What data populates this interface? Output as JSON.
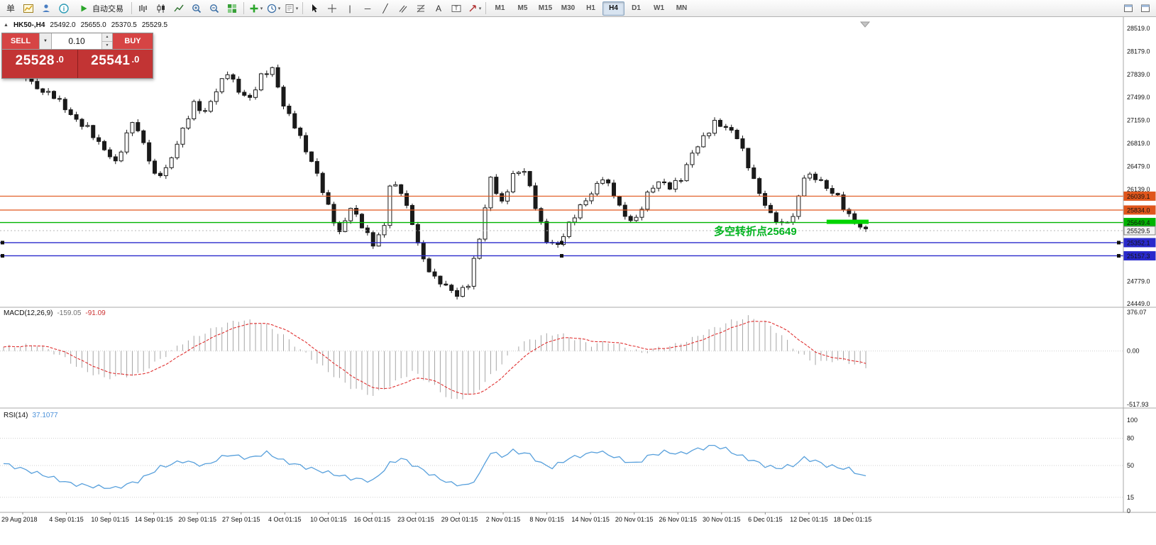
{
  "toolbar": {
    "autotrade_label": "自动交易",
    "timeframes": [
      "M1",
      "M5",
      "M15",
      "M30",
      "H1",
      "H4",
      "D1",
      "W1",
      "MN"
    ],
    "active_timeframe": "H4",
    "groups": [
      [
        {
          "name": "new-order-icon",
          "glyph": "单"
        },
        {
          "name": "new-chart-icon"
        },
        {
          "name": "profiles-icon"
        },
        {
          "name": "data-window-icon"
        }
      ],
      [
        {
          "name": "bar-chart-icon"
        },
        {
          "name": "candlestick-icon"
        },
        {
          "name": "line-chart-icon"
        },
        {
          "name": "zoom-in-icon"
        },
        {
          "name": "zoom-out-icon"
        },
        {
          "name": "tile-windows-icon"
        }
      ],
      [
        {
          "name": "indicators-icon",
          "caret": true
        },
        {
          "name": "periods-icon",
          "caret": true
        },
        {
          "name": "templates-icon",
          "caret": true
        }
      ],
      [
        {
          "name": "cursor-icon"
        },
        {
          "name": "crosshair-icon"
        },
        {
          "name": "vertical-line-icon",
          "glyph": "|"
        },
        {
          "name": "horizontal-line-icon",
          "glyph": "─"
        },
        {
          "name": "trendline-icon",
          "glyph": "╱"
        },
        {
          "name": "channel-icon"
        },
        {
          "name": "fibonacci-icon"
        },
        {
          "name": "text-icon",
          "glyph": "A"
        },
        {
          "name": "label-icon"
        },
        {
          "name": "arrows-icon",
          "caret": true
        }
      ]
    ],
    "right_icons": [
      {
        "name": "window-icon"
      },
      {
        "name": "window-icon"
      }
    ]
  },
  "chart": {
    "symbol_header": {
      "expander_glyph": "▲",
      "symbol": "HK50-,H4",
      "open": "25492.0",
      "high": "25655.0",
      "low": "25370.5",
      "close": "25529.5"
    },
    "trade_panel": {
      "sell_label": "SELL",
      "buy_label": "BUY",
      "volume": "0.10",
      "sell_price_main": "25528",
      "sell_price_frac": ".0",
      "buy_price_main": "25541",
      "buy_price_frac": ".0"
    },
    "annotation": {
      "text": "多空转折点25649",
      "color": "#00b31e"
    },
    "bid_line": {
      "price": 25529.5,
      "tag": "25529.5",
      "tag_bg": "#f2f2f2",
      "tag_border": "#808080",
      "tag_text": "#111111"
    },
    "hlines": [
      {
        "price": 26039.1,
        "tag": "26039.1",
        "color": "#e0561c",
        "width": 1.2,
        "handles": false
      },
      {
        "price": 25834.0,
        "tag": "25834.0",
        "color": "#e0561c",
        "width": 1.2,
        "handles": false
      },
      {
        "price": 25649.4,
        "tag": "25649.4",
        "color": "#00b400",
        "width": 1.4,
        "handles": false
      },
      {
        "price": 25352.1,
        "tag": "25352.1",
        "color": "#2a2acc",
        "width": 1.4,
        "handles": true
      },
      {
        "price": 25157.3,
        "tag": "25157.3",
        "color": "#2a2acc",
        "width": 1.4,
        "handles": true
      }
    ],
    "green_segment": {
      "from_bar": 147,
      "to_bar": 154.5,
      "price": 25660,
      "color": "#00d400",
      "thickness": 6
    },
    "price_axis_labels": [
      28519.0,
      28179.0,
      27839.0,
      27499.0,
      27159.0,
      26819.0,
      26479.0,
      26139.0,
      24779.0,
      24449.0
    ]
  },
  "indicators": {
    "macd": {
      "label": "MACD(12,26,9)",
      "value_main": "-159.05",
      "value_signal": "-91.09",
      "axis_labels": [
        "376.07",
        "0.00",
        "-517.93"
      ],
      "max": 376.07,
      "min": -517.93
    },
    "rsi": {
      "label": "RSI(14)",
      "value": "37.1077",
      "axis_labels": [
        "100",
        "80",
        "50",
        "15",
        "0"
      ],
      "levels": [
        80,
        50,
        15
      ],
      "max": 100,
      "min": 0
    }
  },
  "chart_data": {
    "type": "candlestick",
    "symbol": "HK50-",
    "timeframe": "H4",
    "bars": 155,
    "price_range": [
      24449.0,
      28519.0
    ],
    "price_keypoints": [
      [
        0,
        27870
      ],
      [
        3,
        27900
      ],
      [
        6,
        27650
      ],
      [
        9,
        27500
      ],
      [
        12,
        27250
      ],
      [
        15,
        27050
      ],
      [
        17,
        26800
      ],
      [
        20,
        26550
      ],
      [
        23,
        27150
      ],
      [
        25,
        26800
      ],
      [
        27,
        26350
      ],
      [
        29,
        26450
      ],
      [
        31,
        26800
      ],
      [
        34,
        27400
      ],
      [
        36,
        27300
      ],
      [
        38,
        27600
      ],
      [
        40,
        27850
      ],
      [
        42,
        27600
      ],
      [
        44,
        27500
      ],
      [
        46,
        27800
      ],
      [
        48,
        27900
      ],
      [
        50,
        27400
      ],
      [
        52,
        27100
      ],
      [
        54,
        26700
      ],
      [
        56,
        26350
      ],
      [
        58,
        25900
      ],
      [
        60,
        25500
      ],
      [
        62,
        25850
      ],
      [
        64,
        25600
      ],
      [
        66,
        25350
      ],
      [
        68,
        25600
      ],
      [
        69,
        26200
      ],
      [
        71,
        26100
      ],
      [
        73,
        25650
      ],
      [
        75,
        25100
      ],
      [
        77,
        24800
      ],
      [
        79,
        24700
      ],
      [
        81,
        24600
      ],
      [
        83,
        24750
      ],
      [
        85,
        25400
      ],
      [
        87,
        26300
      ],
      [
        89,
        25950
      ],
      [
        91,
        26350
      ],
      [
        93,
        26400
      ],
      [
        95,
        25900
      ],
      [
        97,
        25400
      ],
      [
        99,
        25300
      ],
      [
        101,
        25600
      ],
      [
        103,
        25900
      ],
      [
        105,
        26100
      ],
      [
        107,
        26300
      ],
      [
        109,
        26050
      ],
      [
        111,
        25750
      ],
      [
        113,
        25700
      ],
      [
        115,
        26050
      ],
      [
        117,
        26250
      ],
      [
        119,
        26200
      ],
      [
        121,
        26300
      ],
      [
        123,
        26650
      ],
      [
        125,
        26900
      ],
      [
        127,
        27150
      ],
      [
        129,
        27050
      ],
      [
        131,
        26900
      ],
      [
        133,
        26500
      ],
      [
        135,
        26100
      ],
      [
        137,
        25750
      ],
      [
        139,
        25600
      ],
      [
        141,
        25750
      ],
      [
        143,
        26350
      ],
      [
        145,
        26300
      ],
      [
        147,
        26150
      ],
      [
        149,
        26050
      ],
      [
        151,
        25750
      ],
      [
        153,
        25550
      ],
      [
        154,
        25530
      ]
    ],
    "macd_keypoints": [
      [
        0,
        40
      ],
      [
        6,
        60
      ],
      [
        10,
        -40
      ],
      [
        14,
        -180
      ],
      [
        18,
        -260
      ],
      [
        24,
        -230
      ],
      [
        28,
        -80
      ],
      [
        32,
        80
      ],
      [
        38,
        230
      ],
      [
        42,
        300
      ],
      [
        46,
        280
      ],
      [
        50,
        150
      ],
      [
        54,
        -30
      ],
      [
        58,
        -200
      ],
      [
        62,
        -350
      ],
      [
        66,
        -430
      ],
      [
        70,
        -300
      ],
      [
        73,
        -200
      ],
      [
        76,
        -300
      ],
      [
        80,
        -480
      ],
      [
        84,
        -420
      ],
      [
        88,
        -180
      ],
      [
        92,
        60
      ],
      [
        96,
        150
      ],
      [
        99,
        170
      ],
      [
        102,
        120
      ],
      [
        105,
        60
      ],
      [
        108,
        90
      ],
      [
        111,
        40
      ],
      [
        114,
        -20
      ],
      [
        117,
        30
      ],
      [
        120,
        60
      ],
      [
        123,
        120
      ],
      [
        126,
        200
      ],
      [
        130,
        290
      ],
      [
        133,
        330
      ],
      [
        136,
        280
      ],
      [
        139,
        150
      ],
      [
        142,
        -20
      ],
      [
        145,
        -120
      ],
      [
        148,
        -90
      ],
      [
        151,
        -110
      ],
      [
        154,
        -159
      ]
    ],
    "rsi_keypoints": [
      [
        0,
        52
      ],
      [
        4,
        45
      ],
      [
        8,
        38
      ],
      [
        12,
        30
      ],
      [
        16,
        27
      ],
      [
        20,
        25
      ],
      [
        24,
        33
      ],
      [
        28,
        48
      ],
      [
        32,
        55
      ],
      [
        36,
        50
      ],
      [
        40,
        62
      ],
      [
        44,
        58
      ],
      [
        47,
        64
      ],
      [
        50,
        55
      ],
      [
        54,
        48
      ],
      [
        58,
        42
      ],
      [
        62,
        36
      ],
      [
        66,
        33
      ],
      [
        69,
        52
      ],
      [
        71,
        58
      ],
      [
        74,
        48
      ],
      [
        77,
        38
      ],
      [
        80,
        30
      ],
      [
        83,
        28
      ],
      [
        85,
        40
      ],
      [
        87,
        65
      ],
      [
        89,
        60
      ],
      [
        91,
        66
      ],
      [
        94,
        62
      ],
      [
        96,
        52
      ],
      [
        98,
        48
      ],
      [
        101,
        58
      ],
      [
        104,
        62
      ],
      [
        106,
        66
      ],
      [
        109,
        60
      ],
      [
        111,
        55
      ],
      [
        113,
        52
      ],
      [
        115,
        60
      ],
      [
        118,
        65
      ],
      [
        121,
        63
      ],
      [
        124,
        68
      ],
      [
        127,
        72
      ],
      [
        129,
        68
      ],
      [
        131,
        62
      ],
      [
        134,
        55
      ],
      [
        136,
        50
      ],
      [
        138,
        47
      ],
      [
        141,
        50
      ],
      [
        143,
        58
      ],
      [
        145,
        55
      ],
      [
        147,
        50
      ],
      [
        149,
        48
      ],
      [
        151,
        46
      ],
      [
        154,
        37.1
      ]
    ],
    "dates": [
      "29 Aug 2018",
      "4 Sep 01:15",
      "10 Sep 01:15",
      "14 Sep 01:15",
      "20 Sep 01:15",
      "27 Sep 01:15",
      "4 Oct 01:15",
      "10 Oct 01:15",
      "16 Oct 01:15",
      "23 Oct 01:15",
      "29 Oct 01:15",
      "2 Nov 01:15",
      "8 Nov 01:15",
      "14 Nov 01:15",
      "20 Nov 01:15",
      "26 Nov 01:15",
      "30 Nov 01:15",
      "6 Dec 01:15",
      "12 Dec 01:15",
      "18 Dec 01:15"
    ]
  }
}
